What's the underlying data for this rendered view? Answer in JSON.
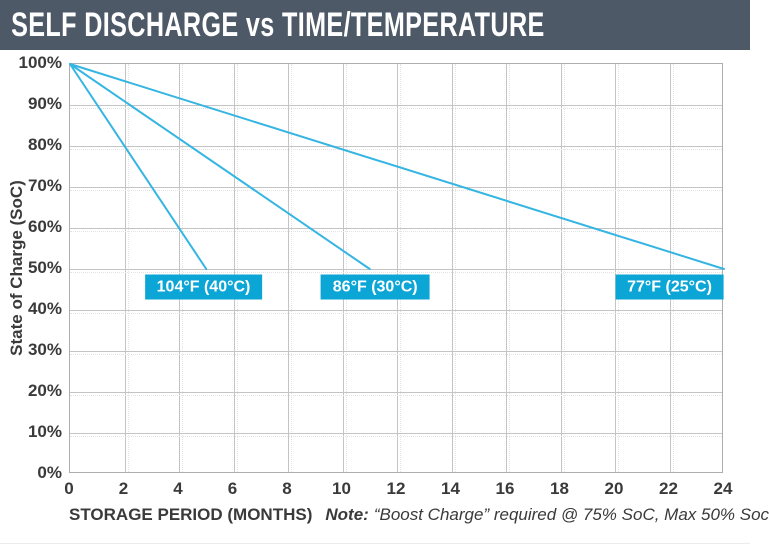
{
  "header": {
    "title": "SELF DISCHARGE vs TIME/TEMPERATURE"
  },
  "colors": {
    "header_bg": "#4d5967",
    "line": "#35b5e2",
    "legend_bg": "#0ba6d5",
    "grid": "#c4c4c4",
    "grid_dotted": "#e3e3e3",
    "plot_border": "#aeaeae",
    "label_text": "#3a3a3a"
  },
  "chart_data": {
    "type": "line",
    "title": "SELF DISCHARGE vs TIME/TEMPERATURE",
    "xlabel": "STORAGE PERIOD (MONTHS)",
    "ylabel": "State of Charge (SoC)",
    "note_label": "Note:",
    "note_text": "“Boost Charge” required @ 75% SoC, Max 50% Soc",
    "xlim": [
      0,
      24
    ],
    "ylim": [
      0,
      100
    ],
    "x_ticks": [
      0,
      2,
      4,
      6,
      8,
      10,
      12,
      14,
      16,
      18,
      20,
      22,
      24
    ],
    "y_ticks": [
      100,
      90,
      80,
      70,
      60,
      50,
      40,
      30,
      20,
      10,
      0
    ],
    "y_tick_suffix": "%",
    "grid": true,
    "legend_position": "inline-labels",
    "series": [
      {
        "name": "104°F (40°C)",
        "points": [
          [
            0,
            100
          ],
          [
            5,
            50
          ]
        ],
        "label_x": 4.9,
        "label_y": 45.5
      },
      {
        "name": "86°F (30°C)",
        "points": [
          [
            0,
            100
          ],
          [
            11,
            50
          ]
        ],
        "label_x": 11.2,
        "label_y": 45.5
      },
      {
        "name": "77°F (25°C)",
        "points": [
          [
            0,
            100
          ],
          [
            24,
            50
          ]
        ],
        "label_x": 22.0,
        "label_y": 45.5
      }
    ]
  }
}
